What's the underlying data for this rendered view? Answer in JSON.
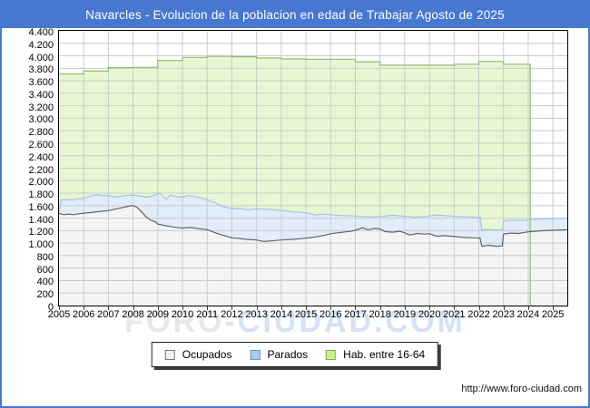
{
  "title": "Navarcles - Evolucion de la poblacion en edad de Trabajar Agosto de 2025",
  "footer_url": "http://www.foro-ciudad.com",
  "watermark": {
    "part1": "FORO-",
    "part2": "CIUDAD.COM"
  },
  "colors": {
    "titlebar": "#4678d0",
    "frame_border": "#4678d0",
    "plot_border": "#000000",
    "gridline": "#cccccc",
    "hab_fill": "#e7f7d3",
    "hab_stroke": "#8cbf6d",
    "parados_fill": "#e1edfa",
    "parados_stroke": "#a0c4e8",
    "ocupados_fill": "#f4f4f4",
    "ocupados_stroke": "#646464"
  },
  "legend": {
    "items": [
      {
        "id": "ocupados",
        "label": "Ocupados",
        "swatch_color": "#f0f0f0",
        "swatch_border": "#777777"
      },
      {
        "id": "parados",
        "label": "Parados",
        "swatch_color": "#abcdf0",
        "swatch_border": "#6f94bb"
      },
      {
        "id": "hab-16-64",
        "label": "Hab. entre 16-64",
        "swatch_color": "#c6ef8e",
        "swatch_border": "#7fae55"
      }
    ]
  },
  "chart_data": {
    "type": "area",
    "title": "Navarcles - Evolucion de la poblacion en edad de Trabajar Agosto de 2025",
    "x_min": 2005,
    "x_max": 2025.583,
    "y_min": 0,
    "y_max": 4400,
    "y_tick_step": 200,
    "grid": true,
    "legend_position": "bottom",
    "x_tick_labels": [
      "2005",
      "2006",
      "2007",
      "2008",
      "2009",
      "2010",
      "2011",
      "2012",
      "2013",
      "2014",
      "2015",
      "2016",
      "2017",
      "2018",
      "2019",
      "2020",
      "2021",
      "2022",
      "2023",
      "2024",
      "2025"
    ],
    "y_tick_labels": [
      "0",
      "200",
      "400",
      "600",
      "800",
      "1.000",
      "1.200",
      "1.400",
      "1.600",
      "1.800",
      "2.000",
      "2.200",
      "2.400",
      "2.600",
      "2.800",
      "3.000",
      "3.200",
      "3.400",
      "3.600",
      "3.800",
      "4.000",
      "4.200",
      "4.400"
    ],
    "series": [
      {
        "id": "hab-16-64",
        "name": "Hab. entre 16-64",
        "type": "step-area",
        "fill": "#e7f7d3",
        "stroke": "#8cbf6d",
        "x_end": 2024.08,
        "points": [
          [
            2005,
            3710
          ],
          [
            2006,
            3755
          ],
          [
            2007,
            3810
          ],
          [
            2008,
            3815
          ],
          [
            2009,
            3925
          ],
          [
            2010,
            3975
          ],
          [
            2011,
            3990
          ],
          [
            2012,
            3985
          ],
          [
            2013,
            3965
          ],
          [
            2014,
            3950
          ],
          [
            2015,
            3945
          ],
          [
            2016,
            3945
          ],
          [
            2017,
            3905
          ],
          [
            2018,
            3850
          ],
          [
            2019,
            3850
          ],
          [
            2020,
            3850
          ],
          [
            2021,
            3865
          ],
          [
            2022,
            3910
          ],
          [
            2023,
            3865
          ],
          [
            2024,
            3865
          ]
        ]
      },
      {
        "id": "parados",
        "name": "Parados",
        "type": "area",
        "fill": "#e1edfa",
        "stroke": "#a0c4e8",
        "points": [
          [
            2005.0,
            1500
          ],
          [
            2005.08,
            1690
          ],
          [
            2005.3,
            1700
          ],
          [
            2005.5,
            1690
          ],
          [
            2005.7,
            1705
          ],
          [
            2006.0,
            1715
          ],
          [
            2006.2,
            1745
          ],
          [
            2006.5,
            1775
          ],
          [
            2006.8,
            1760
          ],
          [
            2007.0,
            1765
          ],
          [
            2007.3,
            1735
          ],
          [
            2007.6,
            1760
          ],
          [
            2008.0,
            1770
          ],
          [
            2008.3,
            1750
          ],
          [
            2008.6,
            1735
          ],
          [
            2008.9,
            1770
          ],
          [
            2009.05,
            1800
          ],
          [
            2009.2,
            1760
          ],
          [
            2009.35,
            1700
          ],
          [
            2009.5,
            1770
          ],
          [
            2009.7,
            1745
          ],
          [
            2010.0,
            1735
          ],
          [
            2010.25,
            1765
          ],
          [
            2010.5,
            1745
          ],
          [
            2010.8,
            1720
          ],
          [
            2011.0,
            1695
          ],
          [
            2011.3,
            1650
          ],
          [
            2011.6,
            1590
          ],
          [
            2012.0,
            1550
          ],
          [
            2012.3,
            1560
          ],
          [
            2012.6,
            1535
          ],
          [
            2013.0,
            1550
          ],
          [
            2013.4,
            1540
          ],
          [
            2013.8,
            1530
          ],
          [
            2014.0,
            1525
          ],
          [
            2014.5,
            1500
          ],
          [
            2015.0,
            1485
          ],
          [
            2015.4,
            1450
          ],
          [
            2015.7,
            1465
          ],
          [
            2016.0,
            1455
          ],
          [
            2016.5,
            1440
          ],
          [
            2017.0,
            1435
          ],
          [
            2017.5,
            1420
          ],
          [
            2018.0,
            1425
          ],
          [
            2018.5,
            1445
          ],
          [
            2019.0,
            1430
          ],
          [
            2019.4,
            1415
          ],
          [
            2019.8,
            1425
          ],
          [
            2020.0,
            1435
          ],
          [
            2020.25,
            1450
          ],
          [
            2020.6,
            1440
          ],
          [
            2021.0,
            1430
          ],
          [
            2021.5,
            1420
          ],
          [
            2022.05,
            1415
          ],
          [
            2022.12,
            1210
          ],
          [
            2022.4,
            1220
          ],
          [
            2022.7,
            1210
          ],
          [
            2022.95,
            1215
          ],
          [
            2023.0,
            1355
          ],
          [
            2023.4,
            1370
          ],
          [
            2023.8,
            1365
          ],
          [
            2024.0,
            1375
          ],
          [
            2024.4,
            1385
          ],
          [
            2024.8,
            1390
          ],
          [
            2025.2,
            1395
          ],
          [
            2025.58,
            1395
          ]
        ]
      },
      {
        "id": "ocupados",
        "name": "Ocupados",
        "type": "area",
        "fill": "#f4f4f4",
        "stroke": "#646464",
        "points": [
          [
            2005.0,
            1475
          ],
          [
            2005.2,
            1455
          ],
          [
            2005.4,
            1465
          ],
          [
            2005.6,
            1455
          ],
          [
            2005.8,
            1470
          ],
          [
            2006.0,
            1480
          ],
          [
            2006.3,
            1490
          ],
          [
            2006.6,
            1505
          ],
          [
            2007.0,
            1520
          ],
          [
            2007.4,
            1555
          ],
          [
            2007.8,
            1590
          ],
          [
            2008.0,
            1600
          ],
          [
            2008.15,
            1575
          ],
          [
            2008.3,
            1520
          ],
          [
            2008.5,
            1430
          ],
          [
            2008.7,
            1370
          ],
          [
            2008.9,
            1340
          ],
          [
            2009.0,
            1305
          ],
          [
            2009.3,
            1280
          ],
          [
            2009.6,
            1260
          ],
          [
            2010.0,
            1240
          ],
          [
            2010.3,
            1250
          ],
          [
            2010.6,
            1235
          ],
          [
            2011.0,
            1215
          ],
          [
            2011.3,
            1170
          ],
          [
            2011.6,
            1130
          ],
          [
            2012.0,
            1085
          ],
          [
            2012.3,
            1075
          ],
          [
            2012.6,
            1060
          ],
          [
            2013.0,
            1050
          ],
          [
            2013.3,
            1025
          ],
          [
            2013.6,
            1035
          ],
          [
            2014.0,
            1050
          ],
          [
            2014.4,
            1060
          ],
          [
            2014.8,
            1070
          ],
          [
            2015.0,
            1080
          ],
          [
            2015.4,
            1100
          ],
          [
            2015.8,
            1130
          ],
          [
            2016.0,
            1150
          ],
          [
            2016.4,
            1170
          ],
          [
            2016.8,
            1190
          ],
          [
            2017.0,
            1205
          ],
          [
            2017.3,
            1245
          ],
          [
            2017.5,
            1215
          ],
          [
            2017.8,
            1235
          ],
          [
            2018.0,
            1225
          ],
          [
            2018.2,
            1185
          ],
          [
            2018.5,
            1175
          ],
          [
            2018.8,
            1190
          ],
          [
            2019.0,
            1165
          ],
          [
            2019.2,
            1130
          ],
          [
            2019.5,
            1155
          ],
          [
            2019.8,
            1145
          ],
          [
            2020.0,
            1150
          ],
          [
            2020.3,
            1110
          ],
          [
            2020.6,
            1120
          ],
          [
            2021.0,
            1105
          ],
          [
            2021.4,
            1090
          ],
          [
            2021.8,
            1085
          ],
          [
            2022.05,
            1080
          ],
          [
            2022.12,
            950
          ],
          [
            2022.4,
            965
          ],
          [
            2022.7,
            950
          ],
          [
            2022.95,
            955
          ],
          [
            2023.0,
            1145
          ],
          [
            2023.3,
            1160
          ],
          [
            2023.6,
            1155
          ],
          [
            2024.0,
            1180
          ],
          [
            2024.3,
            1190
          ],
          [
            2024.6,
            1200
          ],
          [
            2025.0,
            1205
          ],
          [
            2025.3,
            1210
          ],
          [
            2025.58,
            1215
          ]
        ]
      }
    ]
  }
}
